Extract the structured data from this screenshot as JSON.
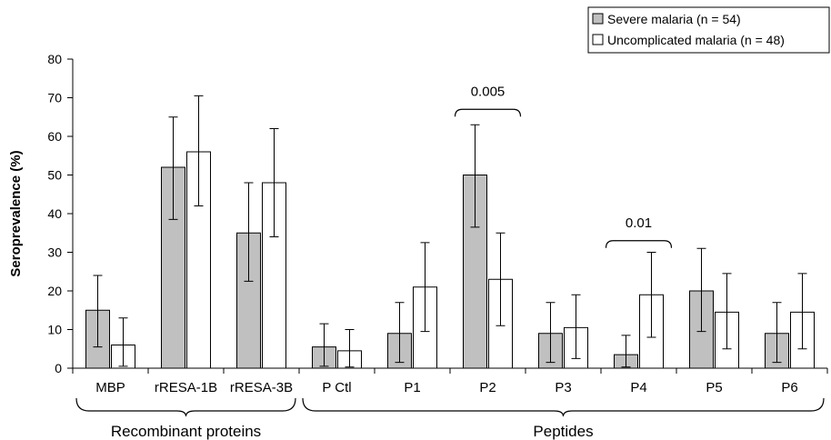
{
  "chart_data": {
    "type": "bar",
    "ylabel": "Seroprevalence (%)",
    "xlabel": "",
    "ylim": [
      0,
      80
    ],
    "yticks": [
      0,
      10,
      20,
      30,
      40,
      50,
      60,
      70,
      80
    ],
    "grid": false,
    "legend_position": "top-right",
    "categories": [
      "MBP",
      "rRESA-1B",
      "rRESA-3B",
      "P Ctl",
      "P1",
      "P2",
      "P3",
      "P4",
      "P5",
      "P6"
    ],
    "series": [
      {
        "name": "Severe malaria (n = 54)",
        "color": "#c0c0c0",
        "values": [
          15,
          52,
          35,
          5.5,
          9,
          50,
          9,
          3.5,
          20,
          9
        ],
        "error_low": [
          5.5,
          38.5,
          22.5,
          0.5,
          1.5,
          36.5,
          1.5,
          0.3,
          9.5,
          1.5
        ],
        "error_high": [
          24,
          65,
          48,
          11.5,
          17,
          63,
          17,
          8.5,
          31,
          17
        ]
      },
      {
        "name": "Uncomplicated malaria (n = 48)",
        "color": "#ffffff",
        "values": [
          6,
          56,
          48,
          4.5,
          21,
          23,
          10.5,
          19,
          14.5,
          14.5
        ],
        "error_low": [
          0.5,
          42,
          34,
          0.3,
          9.5,
          11,
          2.5,
          8,
          5,
          5
        ],
        "error_high": [
          13,
          70.5,
          62,
          10,
          32.5,
          35,
          19,
          30,
          24.5,
          24.5
        ]
      }
    ],
    "groups": [
      {
        "label": "Recombinant proteins",
        "from": 0,
        "to": 2
      },
      {
        "label": "Peptides",
        "from": 3,
        "to": 9
      }
    ],
    "significance": [
      {
        "category": "P2",
        "label": "0.005",
        "y": 67
      },
      {
        "category": "P4",
        "label": "0.01",
        "y": 33
      }
    ]
  }
}
